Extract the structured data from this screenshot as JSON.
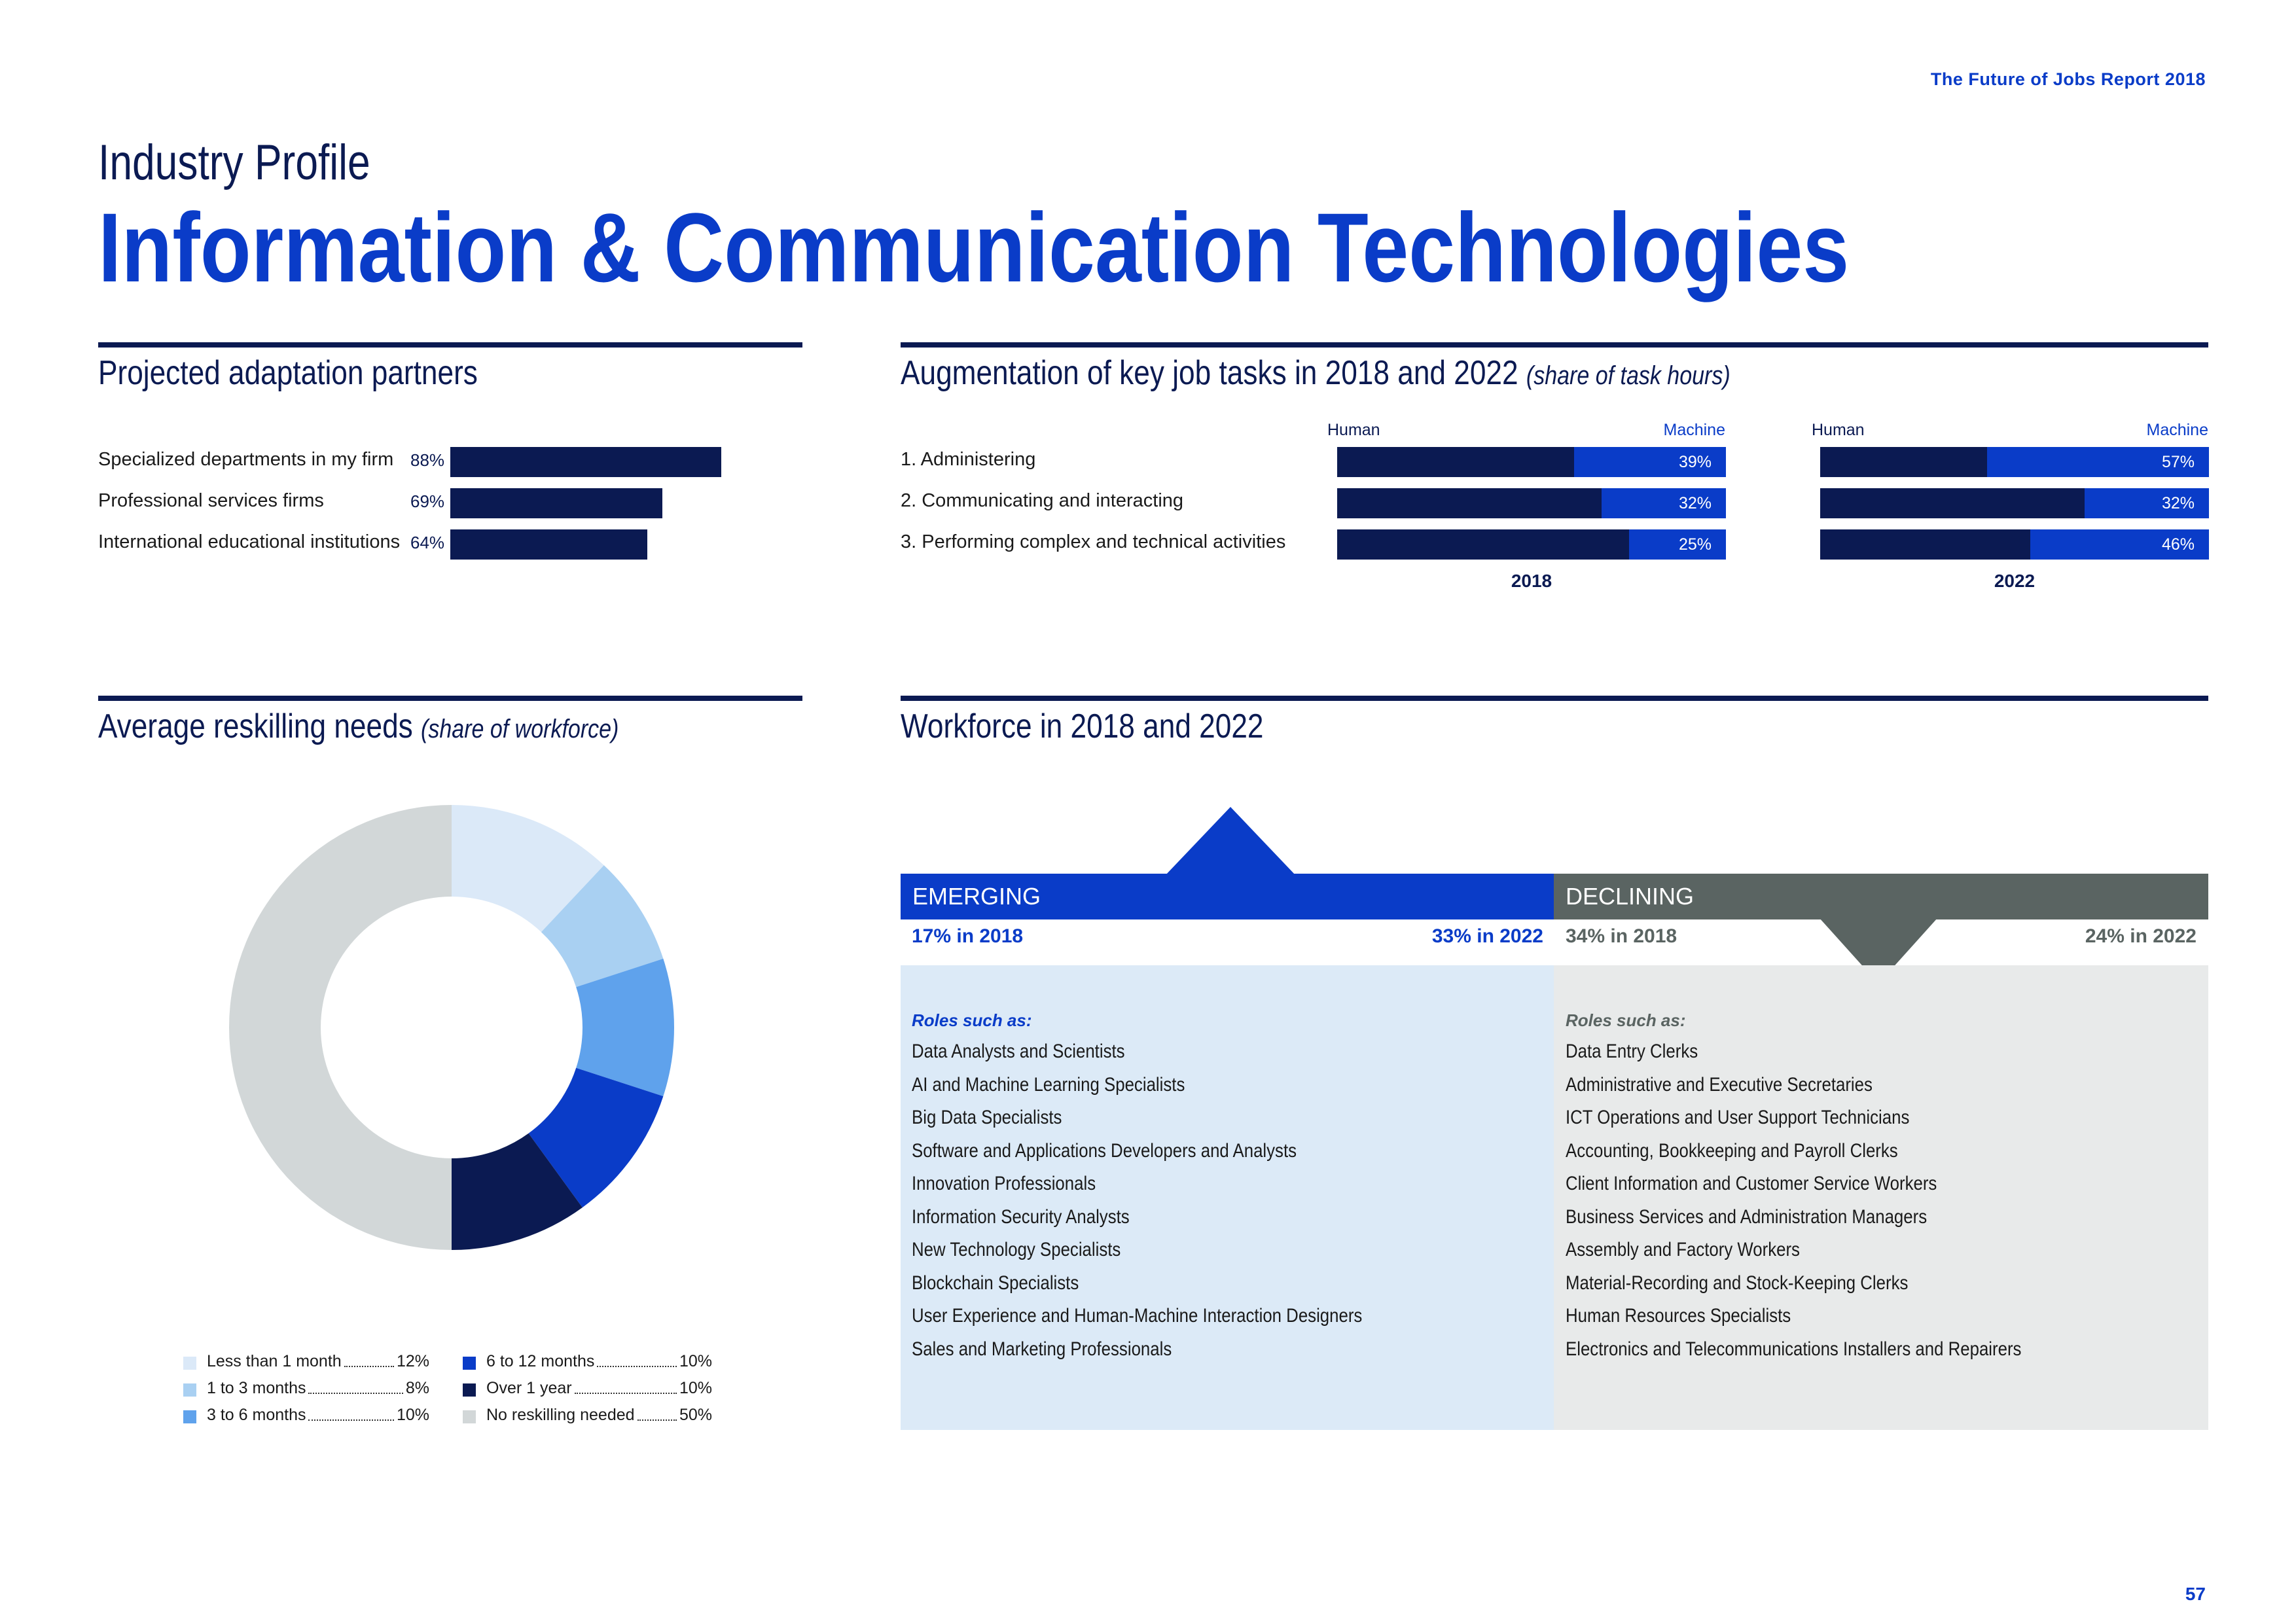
{
  "header": {
    "report_title": "The Future of Jobs Report 2018",
    "kicker": "Industry Profile",
    "title": "Information & Communication Technologies"
  },
  "partners": {
    "title": "Projected adaptation partners",
    "items": [
      {
        "label": "Specialized departments in my firm",
        "pct": "88%",
        "value": 88
      },
      {
        "label": "Professional services firms",
        "pct": "69%",
        "value": 69
      },
      {
        "label": "International educational institutions",
        "pct": "64%",
        "value": 64
      }
    ]
  },
  "augmentation": {
    "title": "Augmentation of key job tasks in 2018 and 2022",
    "subtitle": "(share of task hours)",
    "human_label": "Human",
    "machine_label": "Machine",
    "tasks": [
      {
        "label": "1.  Administering",
        "m2018": 39,
        "m2018_label": "39%",
        "m2022": 57,
        "m2022_label": "57%"
      },
      {
        "label": "2.  Communicating and interacting",
        "m2018": 32,
        "m2018_label": "32%",
        "m2022": 32,
        "m2022_label": "32%"
      },
      {
        "label": "3.  Performing complex and technical activities",
        "m2018": 25,
        "m2018_label": "25%",
        "m2022": 46,
        "m2022_label": "46%"
      }
    ],
    "year_2018": "2018",
    "year_2022": "2022"
  },
  "reskilling": {
    "title": "Average reskilling needs",
    "subtitle": "(share of workforce)"
  },
  "chart_data": {
    "type": "pie",
    "donut": true,
    "categories": [
      "Less than 1 month",
      "1 to 3 months",
      "3 to 6 months",
      "6 to 12 months",
      "Over 1 year",
      "No reskilling needed"
    ],
    "values": [
      12,
      8,
      10,
      10,
      10,
      50
    ],
    "labels": [
      "12%",
      "8%",
      "10%",
      "10%",
      "10%",
      "50%"
    ],
    "colors": [
      "#dbe9f8",
      "#a9d0f2",
      "#5fa2ec",
      "#0a3cc8",
      "#0b1a52",
      "#d2d7d8"
    ]
  },
  "workforce": {
    "title": "Workforce in 2018 and 2022",
    "emerging": {
      "label": "EMERGING",
      "stat_2018": "17% in 2018",
      "stat_2022": "33% in 2022",
      "roles_lead": "Roles such as:",
      "roles": [
        "Data Analysts and Scientists",
        "AI and Machine Learning Specialists",
        "Big Data Specialists",
        "Software and Applications Developers and Analysts",
        "Innovation Professionals",
        "Information Security Analysts",
        "New Technology Specialists",
        "Blockchain Specialists",
        "User Experience and Human-Machine Interaction Designers",
        "Sales and Marketing Professionals"
      ]
    },
    "declining": {
      "label": "DECLINING",
      "stat_2018": "34% in 2018",
      "stat_2022": "24% in 2022",
      "roles_lead": "Roles such as:",
      "roles": [
        "Data Entry Clerks",
        "Administrative and Executive Secretaries",
        "ICT Operations and User Support Technicians",
        "Accounting,  Bookkeeping and Payroll Clerks",
        "Client Information and Customer Service Workers",
        "Business Services and Administration Managers",
        "Assembly and Factory Workers",
        "Material-Recording and Stock-Keeping Clerks",
        "Human Resources Specialists",
        "Electronics and Telecommunications Installers and Repairers"
      ]
    }
  },
  "page_number": "57"
}
